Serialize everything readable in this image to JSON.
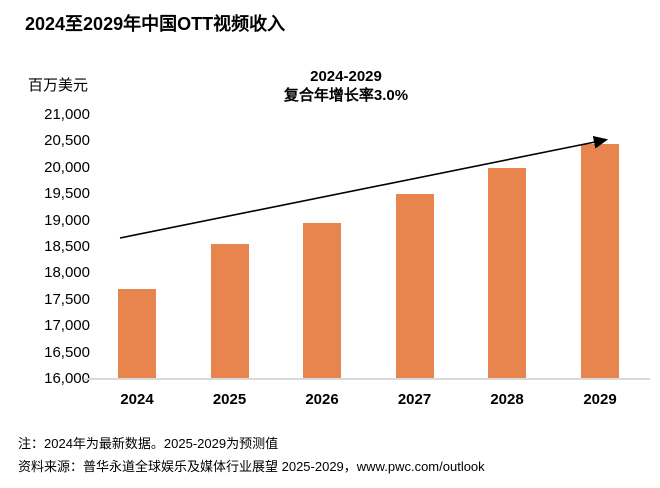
{
  "header": {
    "title": "2024至2029年中国OTT视频收入"
  },
  "chart_data": {
    "type": "bar",
    "title": "2024至2029年中国OTT视频收入",
    "ylabel": "百万美元",
    "xlabel": "",
    "annotation_line1": "2024-2029",
    "annotation_line2": "复合年增长率3.0%",
    "categories": [
      "2024",
      "2025",
      "2026",
      "2027",
      "2028",
      "2029"
    ],
    "values": [
      17700,
      18550,
      18950,
      19500,
      20000,
      20450
    ],
    "ylim": [
      16000,
      21000
    ],
    "ytick_step": 500,
    "ytick_labels": [
      "21,000",
      "20,500",
      "20,000",
      "19,500",
      "19,000",
      "18,500",
      "18,000",
      "17,500",
      "17,000",
      "16,500",
      "16,000"
    ],
    "grid": false,
    "legend_position": "none",
    "bar_color": "#e8854f",
    "axis_line_color": "#d9d9d9",
    "trend_arrow": {
      "present": true,
      "color": "#000000",
      "meaning": "CAGR growth trend 2024-2029"
    }
  },
  "footer": {
    "note": "注：2024年为最新数据。2025-2029为预测值",
    "source": "资料来源：普华永道全球娱乐及媒体行业展望 2025-2029，www.pwc.com/outlook"
  }
}
